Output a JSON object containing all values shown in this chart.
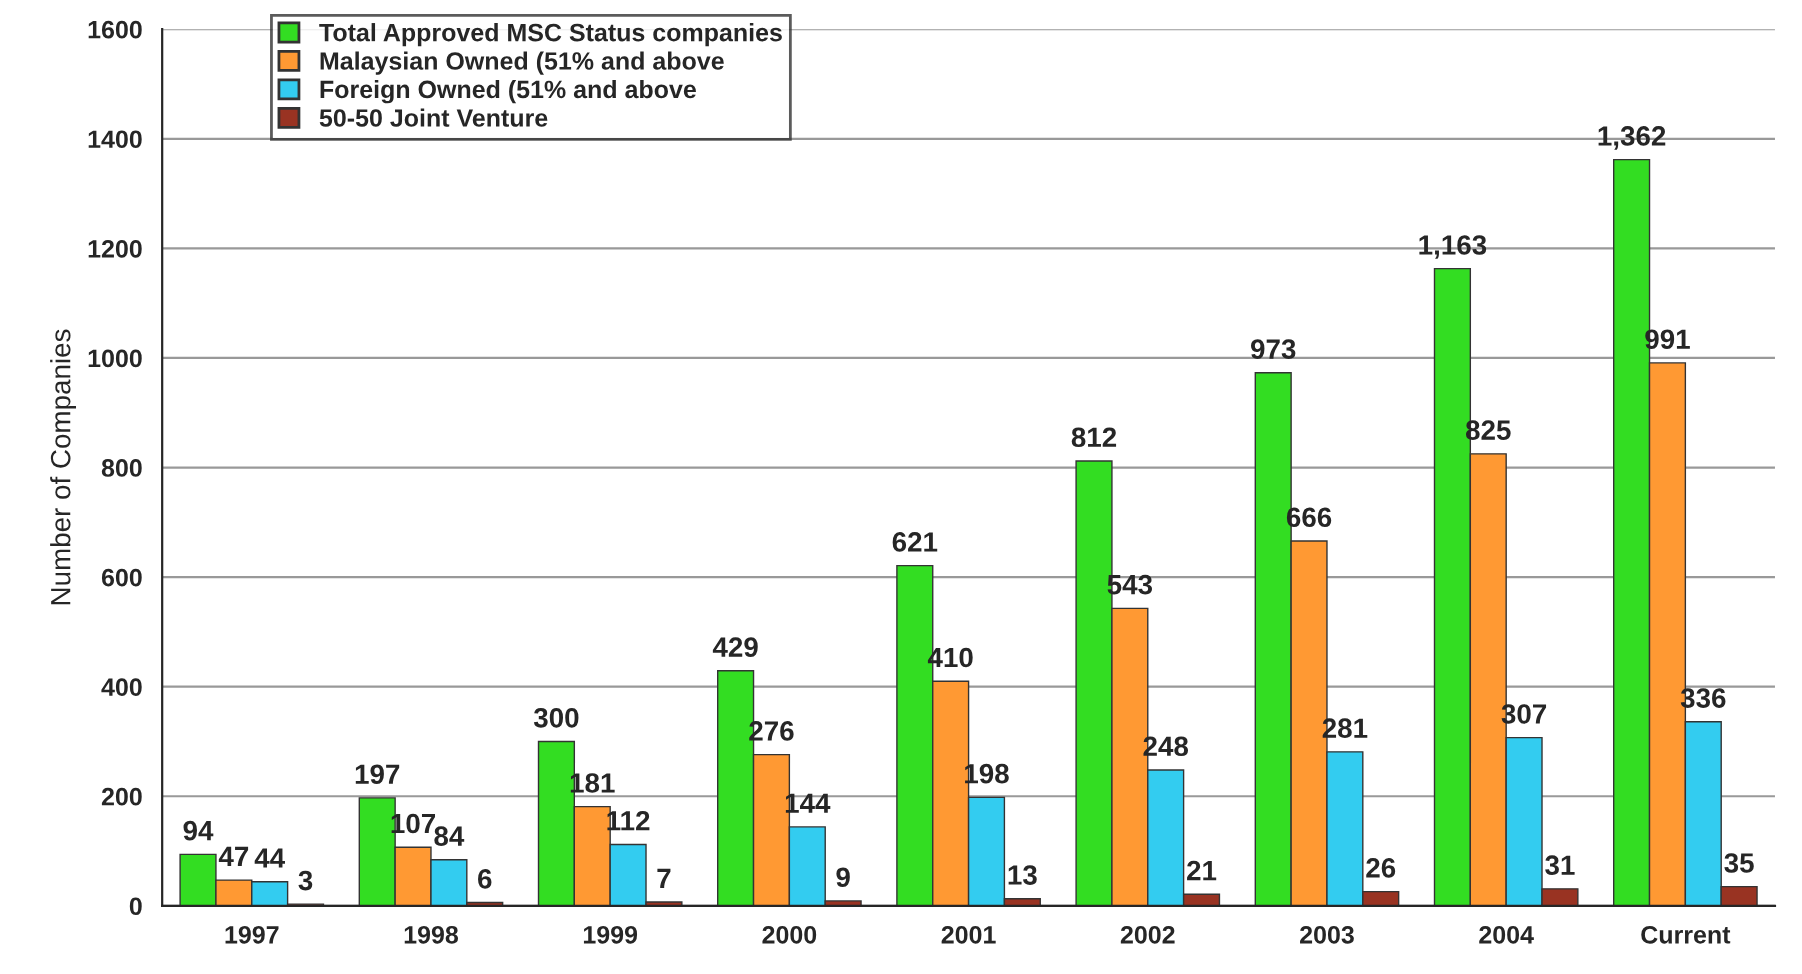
{
  "chart_data": {
    "type": "bar",
    "ylabel": "Number of Companies",
    "categories": [
      "1997",
      "1998",
      "1999",
      "2000",
      "2001",
      "2002",
      "2003",
      "2004",
      "Current"
    ],
    "series": [
      {
        "name": "Total Approved MSC Status companies",
        "color": "#33dd22",
        "values": [
          94,
          197,
          300,
          429,
          621,
          812,
          973,
          1163,
          1362
        ],
        "value_labels": [
          "94",
          "197",
          "300",
          "429",
          "621",
          "812",
          "973",
          "1,163",
          "1,362"
        ]
      },
      {
        "name": "Malaysian Owned (51% and above",
        "color": "#ff9933",
        "values": [
          47,
          107,
          181,
          276,
          410,
          543,
          666,
          825,
          991
        ],
        "value_labels": [
          "47",
          "107",
          "181",
          "276",
          "410",
          "543",
          "666",
          "825",
          "991"
        ]
      },
      {
        "name": "Foreign Owned (51% and above",
        "color": "#33ccf0",
        "values": [
          44,
          84,
          112,
          144,
          198,
          248,
          281,
          307,
          336
        ],
        "value_labels": [
          "44",
          "84",
          "112",
          "144",
          "198",
          "248",
          "281",
          "307",
          "336"
        ]
      },
      {
        "name": "50-50 Joint Venture",
        "color": "#993322",
        "values": [
          3,
          6,
          7,
          9,
          13,
          21,
          26,
          31,
          35
        ],
        "value_labels": [
          "3",
          "6",
          "7",
          "9",
          "13",
          "21",
          "26",
          "31",
          "35"
        ]
      }
    ],
    "ylim": [
      0,
      1600
    ],
    "yticks": [
      0,
      200,
      400,
      600,
      800,
      1000,
      1200,
      1400,
      1600
    ],
    "grid": "y",
    "legend": "top left"
  }
}
